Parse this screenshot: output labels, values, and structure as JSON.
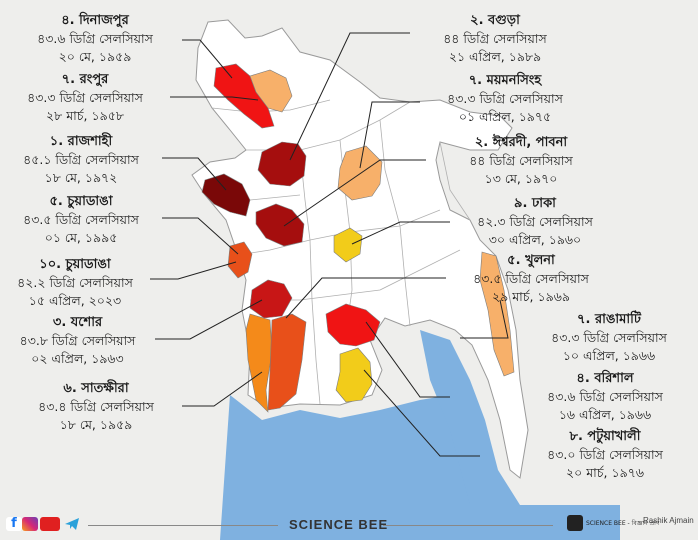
{
  "colors": {
    "background": "#eeeeec",
    "land": "#ffffff",
    "border": "#9a9a9a",
    "water": "#7fb1e0",
    "darkest": "#7a0808",
    "dark_red": "#a50e0e",
    "red": "#e01010",
    "orange_red": "#e8501a",
    "orange": "#f48a1a",
    "light_orange": "#f7b06a",
    "yellow": "#f2cc1a",
    "leader_line": "#222222"
  },
  "labels": [
    {
      "id": "dinajpur",
      "title": "৪. দিনাজপুর",
      "temp": "৪৩.৬ ডিগ্রি সেলসিয়াস",
      "date": "২০ মে, ১৯৫৯",
      "side": "left"
    },
    {
      "id": "rangpur",
      "title": "৭. রংপুর",
      "temp": "৪৩.৩ ডিগ্রি সেলসিয়াস",
      "date": "২৮ মার্চ, ১৯৫৮",
      "side": "left"
    },
    {
      "id": "rajshahi",
      "title": "১. রাজশাহী",
      "temp": "৪৫.১ ডিগ্রি সেলসিয়াস",
      "date": "১৮ মে, ১৯৭২",
      "side": "left"
    },
    {
      "id": "chuadanga1",
      "title": "৫. চুয়াডাঙা",
      "temp": "৪৩.৫ ডিগ্রি সেলসিয়াস",
      "date": "০১ মে, ১৯৯৫",
      "side": "left"
    },
    {
      "id": "chuadanga2",
      "title": "১০. চুয়াডাঙা",
      "temp": "৪২.২ ডিগ্রি সেলসিয়াস",
      "date": "১৫ এপ্রিল, ২০২৩",
      "side": "left"
    },
    {
      "id": "jessore",
      "title": "৩. যশোর",
      "temp": "৪৩.৮ ডিগ্রি সেলসিয়াস",
      "date": "০২ এপ্রিল, ১৯৬৩",
      "side": "left"
    },
    {
      "id": "satkhira",
      "title": "৬. সাতক্ষীরা",
      "temp": "৪৩.৪ ডিগ্রি সেলসিয়াস",
      "date": "১৮ মে, ১৯৫৯",
      "side": "left"
    },
    {
      "id": "bogura",
      "title": "২. বগুড়া",
      "temp": "৪৪ ডিগ্রি সেলসিয়াস",
      "date": "২১ এপ্রিল, ১৯৮৯",
      "side": "right"
    },
    {
      "id": "mymensingh",
      "title": "৭. ময়মনসিংহ",
      "temp": "৪৩.৩ ডিগ্রি সেলসিয়াস",
      "date": "০১ এপ্রিল, ১৯৭৫",
      "side": "right"
    },
    {
      "id": "ishwardi",
      "title": "২. ঈশ্বরদী, পাবনা",
      "temp": "৪৪ ডিগ্রি সেলসিয়াস",
      "date": "১৩ মে, ১৯৭০",
      "side": "right"
    },
    {
      "id": "dhaka",
      "title": "৯. ঢাকা",
      "temp": "৪২.৩ ডিগ্রি সেলসিয়াস",
      "date": "৩০ এপ্রিল, ১৯৬০",
      "side": "right"
    },
    {
      "id": "khulna",
      "title": "৫. খুলনা",
      "temp": "৪৩.৫ ডিগ্রি সেলসিয়াস",
      "date": "২৯ মার্চ, ১৯৬৯",
      "side": "right"
    },
    {
      "id": "rangamati",
      "title": "৭. রাঙামাটি",
      "temp": "৪৩.৩ ডিগ্রি সেলসিয়াস",
      "date": "১০ এপ্রিল, ১৯৬৬",
      "side": "right"
    },
    {
      "id": "barishal",
      "title": "৪. বরিশাল",
      "temp": "৪৩.৬ ডিগ্রি সেলসিয়াস",
      "date": "১৬ এপ্রিল, ১৯৬৬",
      "side": "right"
    },
    {
      "id": "patuakhali",
      "title": "৮. পটুয়াখালী",
      "temp": "৪৩.০ ডিগ্রি সেলসিয়াস",
      "date": "২০ মার্চ, ১৯৭৬",
      "side": "right"
    }
  ],
  "footer": {
    "brand": "SCIENCE BEE",
    "logo_text": "SCIENCE BEE - বিজ্ঞান প্রাণ",
    "author": "Rashik Ajmain",
    "icons": [
      "facebook-icon",
      "instagram-icon",
      "youtube-icon",
      "telegram-icon"
    ]
  }
}
